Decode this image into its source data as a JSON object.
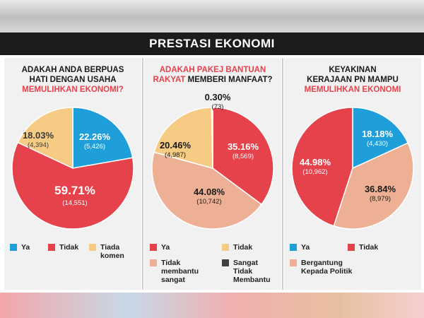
{
  "header": {
    "title": "PRESTASI EKONOMI"
  },
  "colors": {
    "ya": "#1e9fd9",
    "tidak": "#e6424c",
    "tiada": "#f6cc84",
    "peach": "#eeb094",
    "grey": "#404040"
  },
  "chart_data": [
    {
      "type": "pie",
      "title_line1": "ADAKAH ANDA BERPUAS",
      "title_line2": "HATI DENGAN USAHA",
      "title_red": "MEMULIHKAN EKONOMI?",
      "slices": [
        {
          "label": "Ya",
          "pct": 22.26,
          "pct_label": "22.26%",
          "count": "(5,426)",
          "color": "#1e9fd9"
        },
        {
          "label": "Tidak",
          "pct": 59.71,
          "pct_label": "59.71%",
          "count": "(14,551)",
          "color": "#e6424c"
        },
        {
          "label": "Tiada komen",
          "pct": 18.03,
          "pct_label": "18.03%",
          "count": "(4,394)",
          "color": "#f6cc84"
        }
      ]
    },
    {
      "type": "pie",
      "title_red_a": "ADAKAH PAKEJ BANTUAN",
      "title_red_b": "RAKYAT",
      "title_rest": " MEMBERI MANFAAT?",
      "slices": [
        {
          "label": "Ya",
          "pct": 35.16,
          "pct_label": "35.16%",
          "count": "(8,569)",
          "color": "#e6424c"
        },
        {
          "label": "Tidak membantu sangat",
          "pct": 44.08,
          "pct_label": "44.08%",
          "count": "(10,742)",
          "color": "#eeb094"
        },
        {
          "label": "Tidak",
          "pct": 20.46,
          "pct_label": "20.46%",
          "count": "(4,987)",
          "color": "#f6cc84"
        },
        {
          "label": "Sangat Tidak Membantu",
          "pct": 0.3,
          "pct_label": "0.30%",
          "count": "(73)",
          "color": "#404040"
        }
      ],
      "legend": [
        {
          "text": "Ya",
          "color": "#e6424c"
        },
        {
          "text": "Tidak",
          "color": "#f6cc84"
        },
        {
          "text": "Tidak\nmembantu\nsangat",
          "color": "#eeb094"
        },
        {
          "text": "Sangat\nTidak\nMembantu",
          "color": "#404040"
        }
      ]
    },
    {
      "type": "pie",
      "title_line1": "KEYAKINAN",
      "title_line2": "KERAJAAN PN MAMPU",
      "title_red": "MEMULIHKAN EKONOMI",
      "slices": [
        {
          "label": "Ya",
          "pct": 18.18,
          "pct_label": "18.18%",
          "count": "(4,430)",
          "color": "#1e9fd9"
        },
        {
          "label": "Bergantung Kepada Politik",
          "pct": 36.84,
          "pct_label": "36.84%",
          "count": "(8,979)",
          "color": "#eeb094"
        },
        {
          "label": "Tidak",
          "pct": 44.98,
          "pct_label": "44.98%",
          "count": "(10,962)",
          "color": "#e6424c"
        }
      ],
      "legend": [
        {
          "text": "Ya",
          "color": "#1e9fd9"
        },
        {
          "text": "Tidak",
          "color": "#e6424c"
        },
        {
          "text": "Bergantung\nKepada Politik",
          "color": "#eeb094"
        }
      ]
    }
  ],
  "legend1": [
    {
      "text": "Ya",
      "color": "#1e9fd9"
    },
    {
      "text": "Tidak",
      "color": "#e6424c"
    },
    {
      "text": "Tiada\nkomen",
      "color": "#f6cc84"
    }
  ]
}
